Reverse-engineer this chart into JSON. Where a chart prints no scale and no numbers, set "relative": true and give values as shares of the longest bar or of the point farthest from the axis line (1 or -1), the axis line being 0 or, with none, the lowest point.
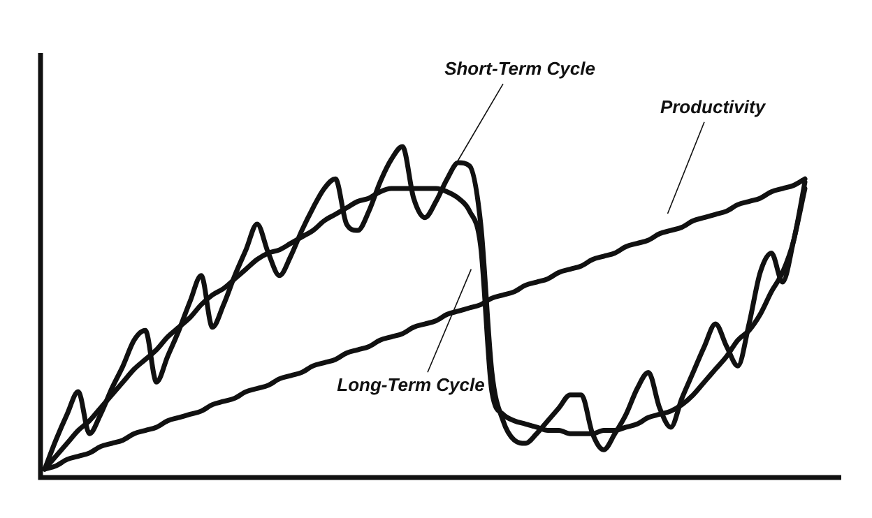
{
  "chart_data": {
    "type": "line",
    "relative": true,
    "marker": "none",
    "line_style": "solid",
    "categories": [
      null,
      null,
      null,
      null,
      null,
      null,
      null,
      null,
      null,
      null,
      null,
      null,
      null,
      null,
      null,
      null,
      null,
      null,
      null,
      null,
      null,
      null,
      null,
      null,
      null,
      null,
      null,
      null,
      null,
      null,
      null,
      null,
      null,
      null,
      null,
      null,
      null,
      null,
      null,
      null,
      null,
      null,
      null,
      null,
      null,
      null,
      null,
      null,
      null,
      null,
      null,
      null,
      null,
      null,
      null,
      null,
      null,
      null,
      null,
      null,
      null,
      null,
      null,
      null,
      null,
      null,
      null,
      null,
      null
    ],
    "series": [
      {
        "name": "Short-Term Cycle",
        "color": "#111111",
        "values": [
          0,
          0.09,
          0.17,
          0.24,
          0.11,
          0.17,
          0.25,
          0.32,
          0.4,
          0.43,
          0.27,
          0.35,
          0.43,
          0.52,
          0.6,
          0.44,
          0.51,
          0.6,
          0.68,
          0.76,
          0.67,
          0.6,
          0.66,
          0.74,
          0.81,
          0.87,
          0.9,
          0.76,
          0.74,
          0.8,
          0.89,
          0.96,
          1,
          0.84,
          0.78,
          0.83,
          0.9,
          0.95,
          0.94,
          0.76,
          0.3,
          0.15,
          0.09,
          0.08,
          0.11,
          0.15,
          0.19,
          0.23,
          0.23,
          0.11,
          0.06,
          0.11,
          0.17,
          0.25,
          0.3,
          0.19,
          0.13,
          0.22,
          0.3,
          0.38,
          0.45,
          0.38,
          0.32,
          0.45,
          0.61,
          0.67,
          0.58,
          0.71,
          0.87
        ]
      },
      {
        "name": "Long-Term Cycle",
        "color": "#111111",
        "values": [
          0,
          0.04,
          0.08,
          0.12,
          0.15,
          0.19,
          0.23,
          0.27,
          0.31,
          0.34,
          0.37,
          0.41,
          0.44,
          0.47,
          0.51,
          0.54,
          0.56,
          0.59,
          0.62,
          0.65,
          0.67,
          0.68,
          0.7,
          0.72,
          0.74,
          0.77,
          0.79,
          0.81,
          0.83,
          0.84,
          0.86,
          0.87,
          0.87,
          0.87,
          0.87,
          0.87,
          0.86,
          0.84,
          0.8,
          0.69,
          0.24,
          0.17,
          0.15,
          0.14,
          0.13,
          0.12,
          0.12,
          0.11,
          0.11,
          0.11,
          0.12,
          0.12,
          0.13,
          0.14,
          0.16,
          0.17,
          0.18,
          0.2,
          0.23,
          0.27,
          0.31,
          0.35,
          0.4,
          0.43,
          0.48,
          0.55,
          0.61,
          0.71,
          0.89
        ]
      },
      {
        "name": "Productivity",
        "color": "#111111",
        "values": [
          0,
          0.01,
          0.03,
          0.04,
          0.05,
          0.07,
          0.08,
          0.09,
          0.11,
          0.12,
          0.13,
          0.15,
          0.16,
          0.17,
          0.18,
          0.2,
          0.21,
          0.22,
          0.24,
          0.25,
          0.26,
          0.28,
          0.29,
          0.3,
          0.32,
          0.33,
          0.34,
          0.36,
          0.37,
          0.38,
          0.4,
          0.41,
          0.42,
          0.44,
          0.45,
          0.46,
          0.48,
          0.49,
          0.5,
          0.51,
          0.53,
          0.54,
          0.55,
          0.57,
          0.58,
          0.59,
          0.61,
          0.62,
          0.63,
          0.65,
          0.66,
          0.67,
          0.69,
          0.7,
          0.71,
          0.73,
          0.74,
          0.75,
          0.77,
          0.78,
          0.79,
          0.8,
          0.82,
          0.83,
          0.84,
          0.86,
          0.87,
          0.88,
          0.9
        ]
      }
    ]
  }
}
